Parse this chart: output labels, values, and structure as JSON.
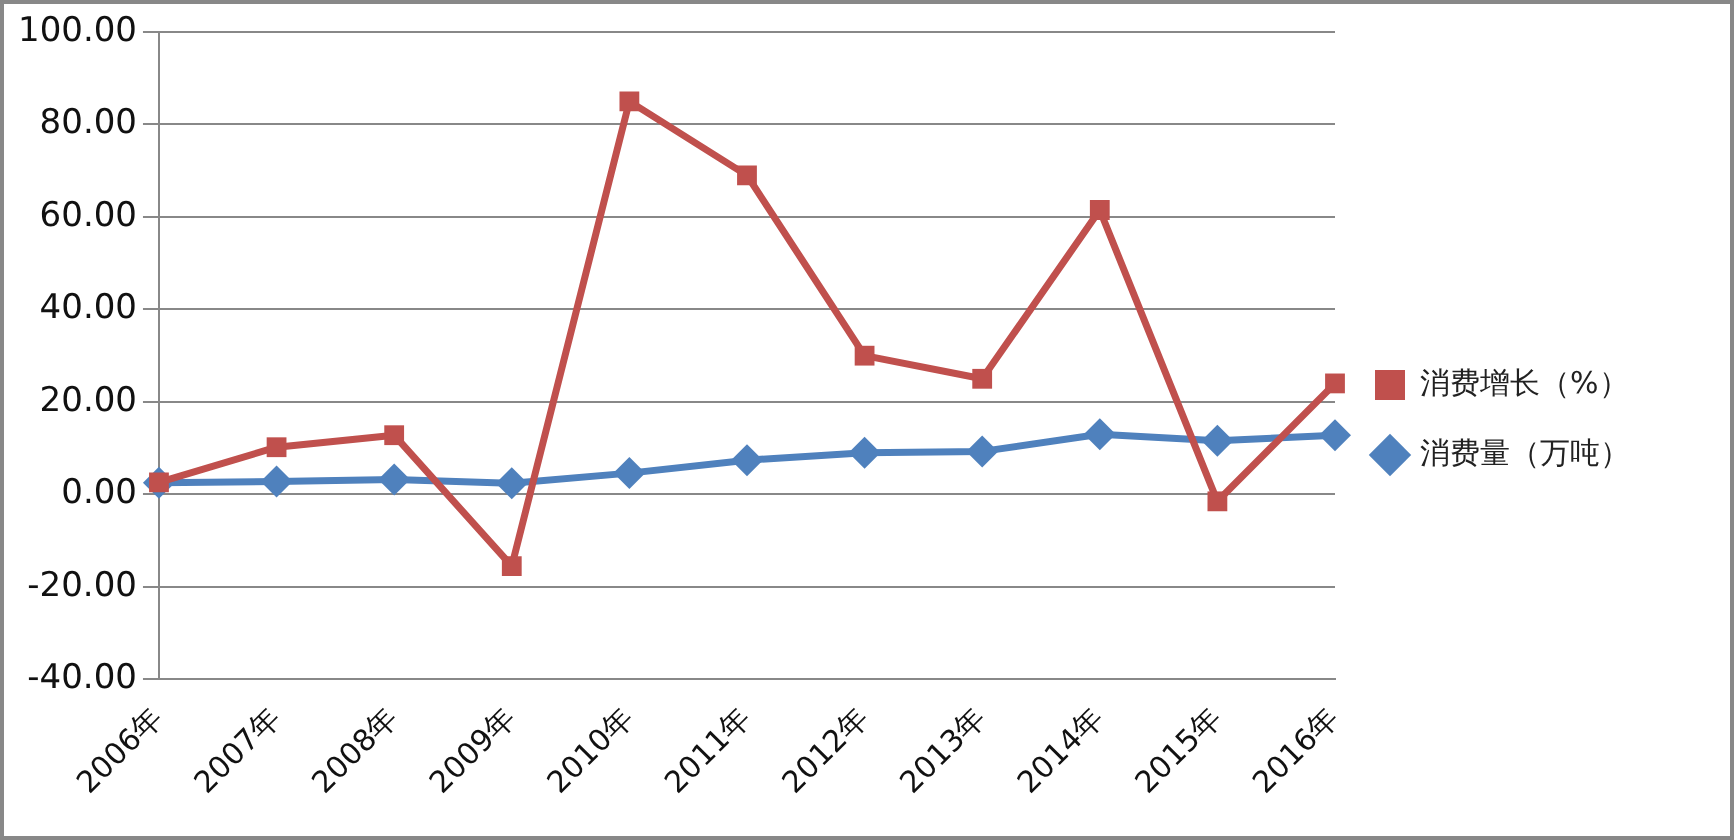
{
  "chart_data": {
    "type": "line",
    "categories": [
      "2006年",
      "2007年",
      "2008年",
      "2009年",
      "2010年",
      "2011年",
      "2012年",
      "2013年",
      "2014年",
      "2015年",
      "2016年"
    ],
    "series": [
      {
        "name": "消费增长（%）",
        "color": "#c0504d",
        "marker": "square",
        "values": [
          2.6,
          10.2,
          12.8,
          -15.5,
          85,
          69,
          30,
          25,
          61.5,
          -1.5,
          24
        ]
      },
      {
        "name": "消费量（万吨）",
        "color": "#4f81bd",
        "marker": "diamond",
        "values": [
          2.5,
          2.8,
          3.2,
          2.4,
          4.6,
          7.4,
          9,
          9.3,
          13,
          11.6,
          12.8
        ]
      }
    ],
    "ylim": [
      -40,
      100
    ],
    "yticks": [
      {
        "value": -40,
        "label": "-40.00"
      },
      {
        "value": -20,
        "label": "-20.00"
      },
      {
        "value": 0,
        "label": "0.00"
      },
      {
        "value": 20,
        "label": "20.00"
      },
      {
        "value": 40,
        "label": "40.00"
      },
      {
        "value": 60,
        "label": "60.00"
      },
      {
        "value": 80,
        "label": "80.00"
      },
      {
        "value": 100,
        "label": "100.00"
      }
    ],
    "grid": "y",
    "legend": "right",
    "line_style": "solid"
  }
}
